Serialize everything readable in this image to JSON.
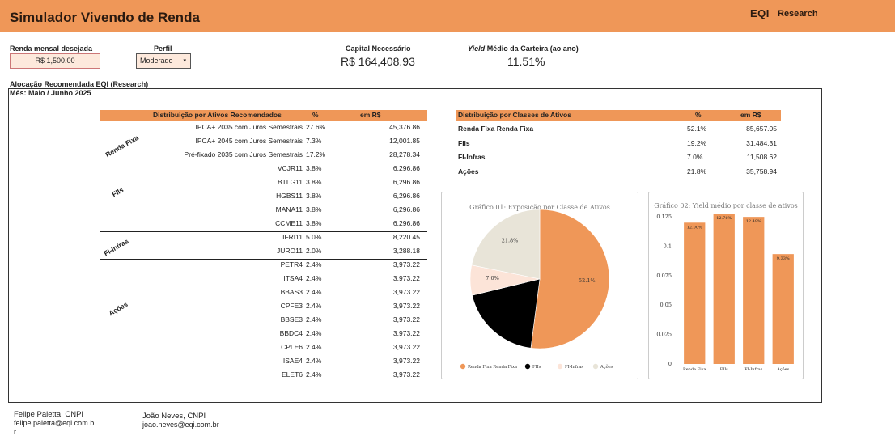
{
  "header": {
    "title": "Simulador Vivendo de Renda",
    "brand": "EQI",
    "brand_sub": "Research"
  },
  "inputs": {
    "renda_label": "Renda mensal desejada",
    "renda_value": "R$ 1,500.00",
    "perfil_label": "Perfil",
    "perfil_value": "Moderado",
    "capital_label": "Capital Necessário",
    "capital_value": "R$ 164,408.93",
    "yield_label_em": "Yield",
    "yield_label_rest": " Médio da Carteira (ao ano)",
    "yield_value": "11.51%"
  },
  "section": {
    "title": "Alocação Recomendada EQI (Research)",
    "month": "Mês: Maio / Junho 2025"
  },
  "assets_table": {
    "headers": [
      "Distribuição por Ativos Recomendados",
      "%",
      "em R$"
    ],
    "groups": [
      {
        "label": "Renda Fixa",
        "rows": [
          [
            "IPCA+ 2035 com Juros Semestrais",
            "27.6%",
            "45,376.86"
          ],
          [
            "IPCA+ 2045 com Juros Semestrais",
            "7.3%",
            "12,001.85"
          ],
          [
            "Pré-fixado 2035 com Juros Semestrais",
            "17.2%",
            "28,278.34"
          ]
        ]
      },
      {
        "label": "FIIs",
        "rows": [
          [
            "VCJR11",
            "3.8%",
            "6,296.86"
          ],
          [
            "BTLG11",
            "3.8%",
            "6,296.86"
          ],
          [
            "HGBS11",
            "3.8%",
            "6,296.86"
          ],
          [
            "MANA11",
            "3.8%",
            "6,296.86"
          ],
          [
            "CCME11",
            "3.8%",
            "6,296.86"
          ]
        ]
      },
      {
        "label": "FI-Infras",
        "rows": [
          [
            "IFRI11",
            "5.0%",
            "8,220.45"
          ],
          [
            "JURO11",
            "2.0%",
            "3,288.18"
          ]
        ]
      },
      {
        "label": "Ações",
        "rows": [
          [
            "PETR4",
            "2.4%",
            "3,973.22"
          ],
          [
            "ITSA4",
            "2.4%",
            "3,973.22"
          ],
          [
            "BBAS3",
            "2.4%",
            "3,973.22"
          ],
          [
            "CPFE3",
            "2.4%",
            "3,973.22"
          ],
          [
            "BBSE3",
            "2.4%",
            "3,973.22"
          ],
          [
            "BBDC4",
            "2.4%",
            "3,973.22"
          ],
          [
            "CPLE6",
            "2.4%",
            "3,973.22"
          ],
          [
            "ISAE4",
            "2.4%",
            "3,973.22"
          ],
          [
            "ELET6",
            "2.4%",
            "3,973.22"
          ]
        ]
      }
    ]
  },
  "class_table": {
    "headers": [
      "Distribuição por Classes de Ativos",
      "%",
      "em R$"
    ],
    "rows": [
      [
        "Renda Fixa Renda Fixa",
        "52.1%",
        "85,657.05"
      ],
      [
        "FIIs",
        "19.2%",
        "31,484.31"
      ],
      [
        "FI-Infras",
        "7.0%",
        "11,508.62"
      ],
      [
        "Ações",
        "21.8%",
        "35,758.94"
      ]
    ]
  },
  "chart_data": [
    {
      "type": "pie",
      "title": "Gráfico 01: Exposição por Classe de Ativos",
      "labels": [
        "Renda Fixa Renda Fixa",
        "FIIs",
        "FI-Infras",
        "Ações"
      ],
      "values": [
        52.1,
        19.2,
        7.0,
        21.8
      ],
      "value_labels": [
        "52.1%",
        "",
        "7.0%",
        "21.8%"
      ],
      "colors": [
        "#ef9758",
        "#000000",
        "#fce4d8",
        "#e8e4d8"
      ],
      "legend": "bottom"
    },
    {
      "type": "bar",
      "title": "Gráfico 02: Yield médio por classe de ativos",
      "categories": [
        "Renda Fixa",
        "FIIs",
        "FI-Infras",
        "Ações"
      ],
      "values": [
        0.12,
        0.1276,
        0.1249,
        0.0933
      ],
      "value_labels": [
        "12.00%",
        "12.76%",
        "12.49%",
        "9.33%"
      ],
      "yticks": [
        "0.125",
        "0.1",
        "0.075",
        "0.05",
        "0.025",
        "0"
      ],
      "ylim": [
        0,
        0.125
      ],
      "color": "#ef9758"
    }
  ],
  "footer": {
    "a_name": "Felipe Paletta, CNPI",
    "a_email_1": "felipe.paletta@eqi.com.b",
    "a_email_2": "r",
    "b_name": "João Neves, CNPI",
    "b_email": "joao.neves@eqi.com.br"
  }
}
